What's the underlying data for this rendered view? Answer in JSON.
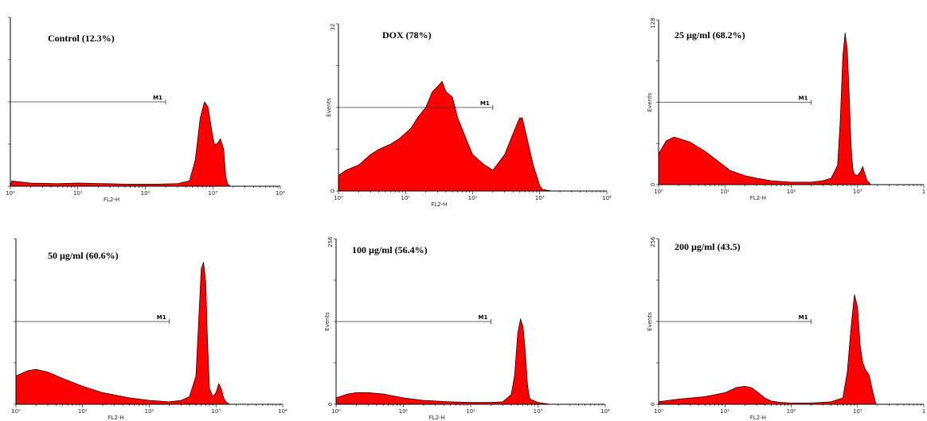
{
  "colors": {
    "fill": "#ff0000",
    "outline": "#000000",
    "axis": "#000000"
  },
  "chart_data": [
    {
      "type": "area",
      "title": "Control (12.3%)",
      "xlabel": "FL2-H",
      "ylabel": "",
      "x_scale": "log",
      "xlim": [
        1,
        10000
      ],
      "ylim": [
        0,
        32
      ],
      "x_tick_labels": [
        "10⁰",
        "10¹",
        "10²",
        "10³",
        "10⁴"
      ],
      "y_tick_labels": [],
      "marker": {
        "label": "M1",
        "range": [
          1,
          200
        ],
        "y": 16
      },
      "series": [
        {
          "x": [
            1,
            1.05,
            2,
            5,
            10,
            50,
            150,
            300,
            450,
            550,
            650,
            750,
            850,
            950,
            1050,
            1150,
            1300,
            1450,
            1550,
            1650,
            1800,
            2500,
            10000
          ],
          "values": [
            0,
            1,
            0.6,
            0.5,
            0.6,
            0.4,
            0.4,
            0.5,
            1,
            5,
            13,
            16,
            15,
            11,
            8,
            8,
            9,
            7,
            2,
            0.5,
            0,
            0,
            0
          ]
        }
      ]
    },
    {
      "type": "area",
      "title": "DOX (78%)",
      "xlabel": "FL2-H",
      "ylabel": "Events",
      "x_scale": "log",
      "xlim": [
        1,
        10000
      ],
      "ylim": [
        0,
        32
      ],
      "x_tick_labels": [
        "10⁰",
        "10¹",
        "10²",
        "10³",
        "10⁴"
      ],
      "y_tick_labels": [
        "0",
        "32"
      ],
      "marker": {
        "label": "M1",
        "range": [
          1,
          200
        ],
        "y": 16
      },
      "series": [
        {
          "x": [
            1,
            1.3,
            2,
            3,
            4,
            6,
            8,
            12,
            15,
            20,
            25,
            30,
            35,
            40,
            50,
            60,
            80,
            100,
            150,
            200,
            300,
            400,
            500,
            550,
            650,
            800,
            1000,
            1100,
            1500,
            5000,
            10000
          ],
          "values": [
            3,
            4,
            5,
            7,
            8,
            9,
            10,
            12,
            14,
            16,
            19,
            20,
            21,
            19,
            18,
            14,
            10,
            7,
            5,
            4,
            7,
            11,
            14,
            14,
            10,
            5,
            1,
            0.3,
            0,
            0,
            0
          ]
        }
      ]
    },
    {
      "type": "area",
      "title": "25 µg/ml (68.2%)",
      "xlabel": "FL2-H",
      "ylabel": "Events",
      "x_scale": "log",
      "xlim": [
        1,
        10000
      ],
      "ylim": [
        0,
        128
      ],
      "x_tick_labels": [
        "10⁰",
        "10¹",
        "10²",
        "10³",
        "1"
      ],
      "y_tick_labels": [
        "0",
        "128"
      ],
      "marker": {
        "label": "M1",
        "range": [
          1,
          200
        ],
        "y": 64
      },
      "series": [
        {
          "x": [
            1,
            1.3,
            1.7,
            2,
            3,
            5,
            8,
            12,
            20,
            30,
            50,
            100,
            200,
            300,
            400,
            500,
            550,
            600,
            650,
            700,
            750,
            800,
            850,
            900,
            1000,
            1100,
            1200,
            1300,
            1400,
            1600,
            10000
          ],
          "values": [
            24,
            34,
            37,
            36,
            33,
            26,
            18,
            11,
            7,
            5,
            3,
            2,
            2,
            3,
            5,
            15,
            50,
            100,
            118,
            105,
            70,
            30,
            12,
            8,
            7,
            10,
            14,
            8,
            3,
            0,
            0
          ]
        }
      ]
    },
    {
      "type": "area",
      "title": "50 µg/ml (60.6%)",
      "xlabel": "FL2-H",
      "ylabel": "",
      "x_scale": "log",
      "xlim": [
        1,
        10000
      ],
      "ylim": [
        0,
        128
      ],
      "x_tick_labels": [
        "10⁰",
        "10¹",
        "10²",
        "10³",
        "10⁴"
      ],
      "y_tick_labels": [],
      "marker": {
        "label": "M1",
        "range": [
          1,
          200
        ],
        "y": 64
      },
      "series": [
        {
          "x": [
            1,
            1.5,
            2,
            3,
            5,
            10,
            20,
            50,
            100,
            200,
            300,
            400,
            500,
            550,
            600,
            650,
            700,
            750,
            800,
            900,
            1000,
            1100,
            1200,
            1300,
            1400,
            1600,
            10000
          ],
          "values": [
            22,
            26,
            27,
            25,
            20,
            14,
            9,
            5,
            3,
            2,
            3,
            6,
            22,
            65,
            105,
            110,
            95,
            45,
            12,
            6,
            9,
            16,
            12,
            5,
            2,
            0,
            0
          ]
        }
      ]
    },
    {
      "type": "area",
      "title": "100 µg/ml (56.4%)",
      "xlabel": "FL2-H",
      "ylabel": "Events",
      "x_scale": "log",
      "xlim": [
        1,
        10000
      ],
      "ylim": [
        0,
        256
      ],
      "x_tick_labels": [
        "10⁰",
        "10¹",
        "10²",
        "10³",
        "10⁴"
      ],
      "y_tick_labels": [
        "0",
        "256"
      ],
      "marker": {
        "label": "M1",
        "range": [
          1,
          200
        ],
        "y": 128
      },
      "series": [
        {
          "x": [
            1,
            1.5,
            2,
            3,
            5,
            10,
            20,
            50,
            100,
            200,
            300,
            400,
            450,
            500,
            550,
            600,
            650,
            700,
            750,
            800,
            900,
            1000,
            1500,
            10000
          ],
          "values": [
            10,
            16,
            18,
            18,
            16,
            10,
            6,
            4,
            3,
            3,
            4,
            15,
            45,
            110,
            132,
            120,
            80,
            30,
            10,
            7,
            5,
            3,
            0,
            0
          ]
        }
      ]
    },
    {
      "type": "area",
      "title": "200 µg/ml (43.5)",
      "xlabel": "FL2-H",
      "ylabel": "Events",
      "x_scale": "log",
      "xlim": [
        1,
        10000
      ],
      "ylim": [
        0,
        256
      ],
      "x_tick_labels": [
        "10⁰",
        "10¹",
        "10²",
        "10³",
        "1"
      ],
      "y_tick_labels": [
        "0",
        "256"
      ],
      "marker": {
        "label": "M1",
        "range": [
          1,
          200
        ],
        "y": 128
      },
      "series": [
        {
          "x": [
            1,
            2,
            5,
            10,
            15,
            20,
            25,
            30,
            40,
            50,
            70,
            100,
            200,
            400,
            600,
            700,
            800,
            900,
            1000,
            1100,
            1200,
            1300,
            1500,
            1700,
            1900,
            10000
          ],
          "values": [
            4,
            8,
            12,
            18,
            26,
            28,
            26,
            20,
            10,
            5,
            3,
            2,
            2,
            4,
            10,
            50,
            120,
            170,
            150,
            90,
            65,
            55,
            45,
            20,
            0,
            0
          ]
        }
      ]
    }
  ]
}
